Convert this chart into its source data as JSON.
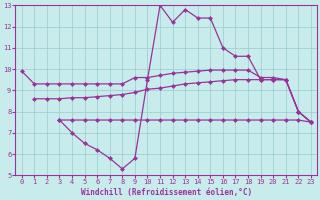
{
  "xlabel": "Windchill (Refroidissement éolien,°C)",
  "bg_color": "#c8ecec",
  "line_color": "#993399",
  "grid_color": "#99cccc",
  "xlim": [
    -0.5,
    23.5
  ],
  "ylim": [
    5,
    13
  ],
  "yticks": [
    5,
    6,
    7,
    8,
    9,
    10,
    11,
    12,
    13
  ],
  "xticks": [
    0,
    1,
    2,
    3,
    4,
    5,
    6,
    7,
    8,
    9,
    10,
    11,
    12,
    13,
    14,
    15,
    16,
    17,
    18,
    19,
    20,
    21,
    22,
    23
  ],
  "line1_x": [
    0,
    1,
    2,
    3,
    4,
    5,
    6,
    7,
    8,
    9,
    10,
    11,
    12,
    13,
    14,
    15,
    16,
    17,
    18,
    19,
    20,
    21,
    22,
    23
  ],
  "line1_y": [
    9.9,
    9.3,
    9.3,
    9.3,
    9.3,
    9.3,
    9.3,
    9.3,
    9.3,
    9.6,
    9.6,
    9.7,
    9.8,
    9.85,
    9.9,
    9.95,
    9.95,
    9.95,
    9.95,
    9.6,
    9.6,
    9.5,
    8.0,
    7.5
  ],
  "line2_x": [
    1,
    2,
    3,
    4,
    5,
    6,
    7,
    8,
    9,
    10,
    11,
    12,
    13,
    14,
    15,
    16,
    17,
    18,
    19,
    20,
    21,
    22,
    23
  ],
  "line2_y": [
    8.6,
    8.6,
    8.6,
    8.65,
    8.65,
    8.7,
    8.75,
    8.8,
    8.9,
    9.05,
    9.1,
    9.2,
    9.3,
    9.35,
    9.4,
    9.45,
    9.5,
    9.5,
    9.5,
    9.5,
    9.5,
    8.0,
    7.5
  ],
  "line3_x": [
    3,
    4,
    5,
    6,
    7,
    8,
    9,
    10,
    11,
    12,
    13,
    14,
    15,
    16,
    17,
    18,
    19,
    20,
    21,
    22,
    23
  ],
  "line3_y": [
    7.6,
    7.0,
    6.5,
    6.2,
    5.8,
    5.3,
    5.8,
    9.5,
    13.0,
    12.2,
    12.8,
    12.4,
    12.4,
    11.0,
    10.6,
    10.6,
    9.5,
    9.5,
    9.5,
    8.0,
    7.5
  ],
  "line4_x": [
    3,
    4,
    5,
    6,
    7,
    8,
    9,
    10,
    11,
    12,
    13,
    14,
    15,
    16,
    17,
    18,
    19,
    20,
    21,
    22,
    23
  ],
  "line4_y": [
    7.6,
    7.6,
    7.6,
    7.6,
    7.6,
    7.6,
    7.6,
    7.6,
    7.6,
    7.6,
    7.6,
    7.6,
    7.6,
    7.6,
    7.6,
    7.6,
    7.6,
    7.6,
    7.6,
    7.6,
    7.5
  ],
  "font_family": "monospace",
  "marker_size": 2.5,
  "linewidth": 0.9,
  "xlabel_size": 5.5,
  "tick_size": 5.0
}
